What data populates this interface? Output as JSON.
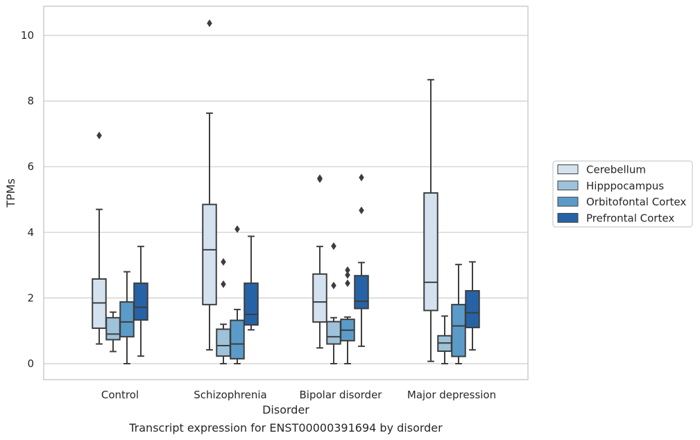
{
  "chart_data": {
    "type": "box",
    "caption": "Transcript expression for ENST00000391694 by disorder",
    "xlabel": "Disorder",
    "ylabel": "TPMs",
    "ylim": [
      -0.5,
      10.9
    ],
    "yticks": [
      0,
      2,
      4,
      6,
      8,
      10
    ],
    "grid": true,
    "legend_position": "right",
    "categories": [
      "Control",
      "Schizophrenia",
      "Bipolar disorder",
      "Major depression"
    ],
    "series": [
      {
        "name": "Cerebellum",
        "color": "#d4e2f0",
        "boxes": [
          {
            "whisker_low": 0.6,
            "q1": 1.08,
            "median": 1.85,
            "q3": 2.58,
            "whisker_high": 4.7,
            "outliers": [
              6.95
            ]
          },
          {
            "whisker_low": 0.42,
            "q1": 1.8,
            "median": 3.47,
            "q3": 4.85,
            "whisker_high": 7.63,
            "outliers": [
              10.37
            ]
          },
          {
            "whisker_low": 0.48,
            "q1": 1.27,
            "median": 1.88,
            "q3": 2.73,
            "whisker_high": 3.57,
            "outliers": [
              5.62,
              5.65
            ]
          },
          {
            "whisker_low": 0.07,
            "q1": 1.62,
            "median": 2.48,
            "q3": 5.2,
            "whisker_high": 8.65,
            "outliers": []
          }
        ]
      },
      {
        "name": "Hipppocampus",
        "color": "#9ec2da",
        "boxes": [
          {
            "whisker_low": 0.37,
            "q1": 0.73,
            "median": 0.9,
            "q3": 1.4,
            "whisker_high": 1.57,
            "outliers": []
          },
          {
            "whisker_low": 0.0,
            "q1": 0.23,
            "median": 0.55,
            "q3": 1.05,
            "whisker_high": 1.2,
            "outliers": [
              2.42,
              3.1
            ]
          },
          {
            "whisker_low": 0.0,
            "q1": 0.6,
            "median": 0.82,
            "q3": 1.28,
            "whisker_high": 1.4,
            "outliers": [
              2.38,
              3.58
            ]
          },
          {
            "whisker_low": 0.0,
            "q1": 0.38,
            "median": 0.63,
            "q3": 0.85,
            "whisker_high": 1.45,
            "outliers": []
          }
        ]
      },
      {
        "name": "Orbitofontal Cortex",
        "color": "#5b9bc9",
        "boxes": [
          {
            "whisker_low": 0.0,
            "q1": 0.82,
            "median": 1.27,
            "q3": 1.88,
            "whisker_high": 2.8,
            "outliers": []
          },
          {
            "whisker_low": 0.0,
            "q1": 0.15,
            "median": 0.6,
            "q3": 1.32,
            "whisker_high": 1.65,
            "outliers": [
              4.1
            ]
          },
          {
            "whisker_low": 0.0,
            "q1": 0.7,
            "median": 1.02,
            "q3": 1.35,
            "whisker_high": 1.42,
            "outliers": [
              2.45,
              2.7,
              2.85
            ]
          },
          {
            "whisker_low": 0.0,
            "q1": 0.22,
            "median": 1.15,
            "q3": 1.8,
            "whisker_high": 3.02,
            "outliers": []
          }
        ]
      },
      {
        "name": "Prefrontal Cortex",
        "color": "#2663a6",
        "boxes": [
          {
            "whisker_low": 0.23,
            "q1": 1.33,
            "median": 1.72,
            "q3": 2.45,
            "whisker_high": 3.57,
            "outliers": []
          },
          {
            "whisker_low": 1.03,
            "q1": 1.18,
            "median": 1.5,
            "q3": 2.45,
            "whisker_high": 3.88,
            "outliers": []
          },
          {
            "whisker_low": 0.53,
            "q1": 1.68,
            "median": 1.9,
            "q3": 2.68,
            "whisker_high": 3.08,
            "outliers": [
              4.67,
              5.67
            ]
          },
          {
            "whisker_low": 0.42,
            "q1": 1.1,
            "median": 1.55,
            "q3": 2.22,
            "whisker_high": 3.1,
            "outliers": []
          }
        ]
      }
    ]
  }
}
